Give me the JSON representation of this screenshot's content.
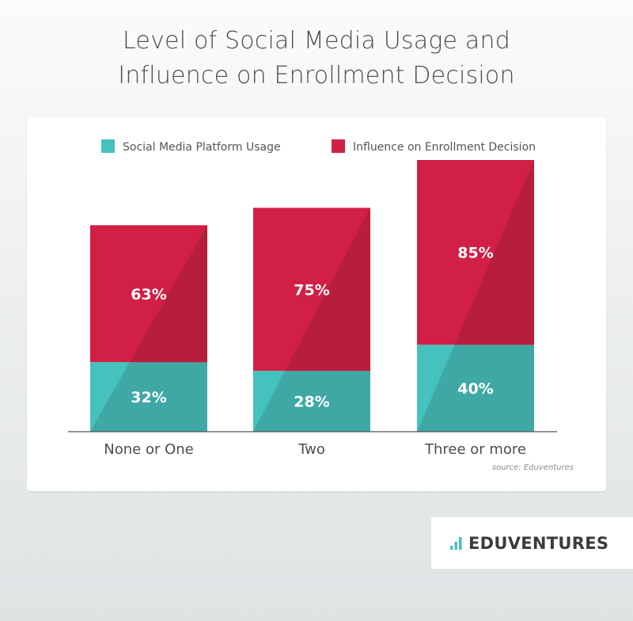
{
  "title_lines": [
    "Level of Social Media Usage and",
    "Influence on Enrollment Decision"
  ],
  "source": "source: Eduventures",
  "logo": {
    "text": "EDUVENTURES",
    "icon": "bar-chart-icon"
  },
  "colors": {
    "usage": "#46c2be",
    "usage_dark": "#3fa8a5",
    "influence": "#d11f45",
    "influence_dark": "#b71e3d"
  },
  "chart_data": {
    "type": "bar",
    "stacked": true,
    "title": "Level of Social Media Usage and Influence on Enrollment Decision",
    "categories": [
      "None or One",
      "Two",
      "Three or more"
    ],
    "series": [
      {
        "name": "Social Media Platform Usage",
        "values": [
          32,
          28,
          40
        ]
      },
      {
        "name": "Influence on Enrollment Decision",
        "values": [
          63,
          75,
          85
        ]
      }
    ],
    "data_labels": [
      [
        "32%",
        "28%",
        "40%"
      ],
      [
        "63%",
        "75%",
        "85%"
      ]
    ],
    "legend_position": "top",
    "grid": false,
    "ylim": [
      0,
      125
    ]
  }
}
